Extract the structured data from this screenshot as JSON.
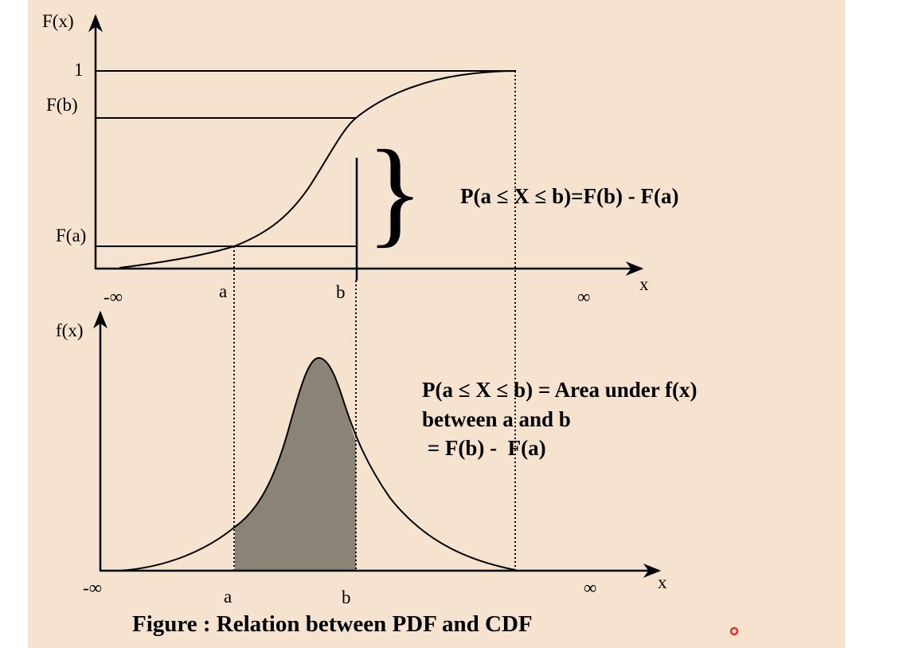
{
  "figure": {
    "caption": "Figure : Relation between PDF and CDF",
    "cdf": {
      "y_label": "F(x)",
      "x_label": "x",
      "tick_one": "1",
      "tick_fb": "F(b)",
      "tick_fa": "F(a)",
      "minus_inf": "-∞",
      "plus_inf": "∞",
      "a": "a",
      "b": "b",
      "equation": "P(a ≤ X ≤ b)=F(b) - F(a)"
    },
    "pdf": {
      "y_label": "f(x)",
      "x_label": "x",
      "minus_inf": "-∞",
      "plus_inf": "∞",
      "a": "a",
      "b": "b",
      "equation_line1": "P(a ≤ X ≤ b) = Area under f(x)",
      "equation_line2": "between a and b",
      "equation_line3": " = F(b) -  F(a)"
    }
  },
  "colors": {
    "background": "#f5e3cf",
    "shaded_area": "#8c8377",
    "cursor_dot": "#e8302a"
  }
}
